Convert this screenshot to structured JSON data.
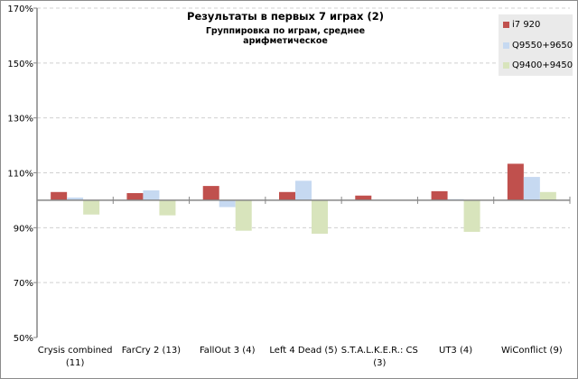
{
  "chart_data": {
    "type": "bar",
    "title": "Результаты в первых 7 играх (2)",
    "subtitle": "Группировка по играм, среднее арифметическое",
    "categories": [
      [
        "Crysis combined",
        "(11)"
      ],
      [
        "FarCry 2 (13)"
      ],
      [
        "FallOut 3 (4)"
      ],
      [
        "Left 4 Dead (5)"
      ],
      [
        "S.T.A.L.K.E.R.: CS",
        "(3)"
      ],
      [
        "UT3 (4)"
      ],
      [
        "WiConflict (9)"
      ]
    ],
    "baseline": 100,
    "ylim": [
      50,
      170
    ],
    "yticks": [
      50,
      70,
      90,
      110,
      130,
      150,
      170
    ],
    "ytick_labels": [
      "50%",
      "70%",
      "90%",
      "110%",
      "130%",
      "150%",
      "170%"
    ],
    "grid": true,
    "legend_position": "top-right",
    "series": [
      {
        "name": "i7 920",
        "color": "#c0504d",
        "values": [
          103.0,
          102.6,
          105.2,
          103.0,
          101.7,
          103.3,
          113.3
        ]
      },
      {
        "name": "Q9550+9650",
        "color": "#c6d9f1",
        "values": [
          101.0,
          103.6,
          97.5,
          107.1,
          100.0,
          100.4,
          108.5
        ]
      },
      {
        "name": "Q9400+9450",
        "color": "#d8e4bc",
        "values": [
          94.8,
          94.5,
          88.9,
          87.8,
          100.0,
          88.5,
          103.0
        ]
      }
    ]
  }
}
